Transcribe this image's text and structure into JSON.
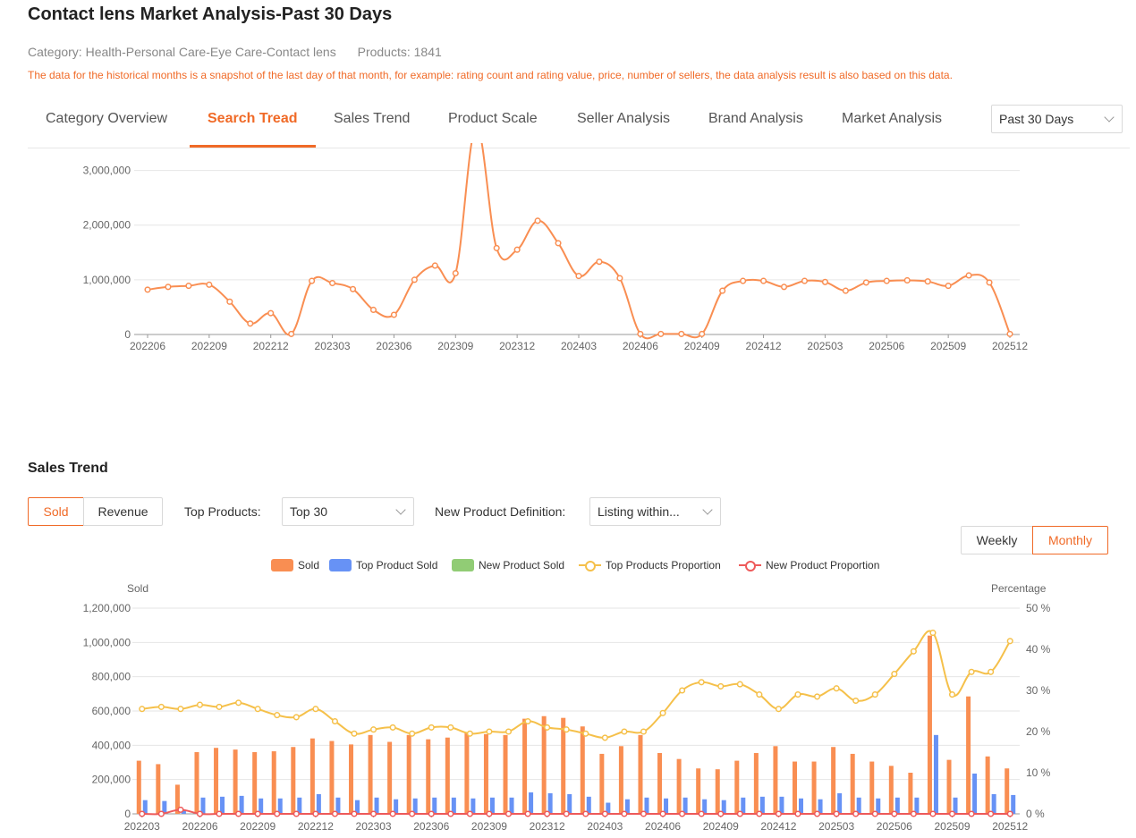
{
  "page": {
    "title": "Contact lens Market Analysis-Past 30 Days",
    "category_label": "Category:",
    "category_value": "Health-Personal Care-Eye Care-Contact lens",
    "products_label": "Products:",
    "products_value": "1841",
    "note": "The data for the historical months is a snapshot of the last day of that month, for example: rating count and rating value, price, number of sellers, the data analysis result is also based on this data."
  },
  "tabs": [
    "Category Overview",
    "Search Tread",
    "Sales Trend",
    "Product Scale",
    "Seller Analysis",
    "Brand Analysis",
    "Market Analysis"
  ],
  "active_tab": "Search Tread",
  "period_select": "Past 30 Days",
  "sales_trend": {
    "title": "Sales Trend",
    "sold_button": "Sold",
    "revenue_button": "Revenue",
    "top_products_label": "Top Products:",
    "top_products_value": "Top 30",
    "new_def_label": "New Product Definition:",
    "new_def_value": "Listing within...",
    "weekly_button": "Weekly",
    "monthly_button": "Monthly",
    "legend": {
      "sold": "Sold",
      "top_sold": "Top Product Sold",
      "new_sold": "New Product Sold",
      "top_prop": "Top Products Proportion",
      "new_prop": "New Product Proportion"
    },
    "left_axis_title": "Sold",
    "right_axis_title": "Percentage"
  },
  "colors": {
    "accent": "#f06a27",
    "sold": "#f98e52",
    "top_sold": "#6792f5",
    "new_sold": "#91cc75",
    "top_prop": "#f5c04a",
    "new_prop": "#ee5a5a"
  },
  "chart_data": [
    {
      "type": "line",
      "title": "Search Tread",
      "x": [
        "202206",
        "202207",
        "202208",
        "202209",
        "202210",
        "202211",
        "202212",
        "202301",
        "202302",
        "202303",
        "202304",
        "202305",
        "202306",
        "202307",
        "202308",
        "202309",
        "202310",
        "202311",
        "202312",
        "202401",
        "202402",
        "202403",
        "202404",
        "202405",
        "202406",
        "202407",
        "202408",
        "202409",
        "202410",
        "202411",
        "202412",
        "202501",
        "202502",
        "202503",
        "202504",
        "202505",
        "202506",
        "202507",
        "202508",
        "202509",
        "202510",
        "202511",
        "202512"
      ],
      "xticks": [
        "202206",
        "202209",
        "202212",
        "202303",
        "202306",
        "202309",
        "202312",
        "202403",
        "202406",
        "202409",
        "202412",
        "202503",
        "202506",
        "202509",
        "202512"
      ],
      "values": [
        820000,
        870000,
        890000,
        910000,
        600000,
        200000,
        390000,
        10000,
        980000,
        940000,
        830000,
        450000,
        360000,
        1000000,
        1260000,
        1120000,
        3800000,
        1580000,
        1550000,
        2080000,
        1670000,
        1070000,
        1330000,
        1030000,
        10000,
        10000,
        10000,
        10000,
        800000,
        980000,
        980000,
        870000,
        980000,
        960000,
        800000,
        950000,
        980000,
        990000,
        970000,
        890000,
        1080000,
        950000,
        10000
      ],
      "yticks": [
        0,
        1000000,
        2000000,
        3000000
      ],
      "ylim": [
        0,
        3500000
      ]
    },
    {
      "type": "bar",
      "title": "Sales Trend",
      "categories": [
        "202203",
        "202204",
        "202205",
        "202206",
        "202207",
        "202208",
        "202209",
        "202210",
        "202211",
        "202212",
        "202301",
        "202302",
        "202303",
        "202304",
        "202305",
        "202306",
        "202307",
        "202308",
        "202309",
        "202310",
        "202311",
        "202312",
        "202401",
        "202402",
        "202403",
        "202404",
        "202405",
        "202406",
        "202407",
        "202408",
        "202409",
        "202410",
        "202411",
        "202412",
        "202501",
        "202502",
        "202503",
        "202504",
        "202505",
        "202506",
        "202507",
        "202508",
        "202509",
        "202510",
        "202511",
        "202512"
      ],
      "xticks": [
        "202203",
        "202206",
        "202209",
        "202212",
        "202303",
        "202306",
        "202309",
        "202312",
        "202403",
        "202406",
        "202409",
        "202412",
        "202503",
        "202506",
        "202509",
        "202512"
      ],
      "series": [
        {
          "name": "Sold",
          "axis": "left",
          "values": [
            310000,
            290000,
            170000,
            360000,
            385000,
            375000,
            360000,
            365000,
            390000,
            440000,
            425000,
            405000,
            460000,
            420000,
            460000,
            435000,
            445000,
            470000,
            465000,
            460000,
            555000,
            570000,
            560000,
            510000,
            350000,
            395000,
            460000,
            355000,
            320000,
            265000,
            260000,
            310000,
            355000,
            395000,
            305000,
            305000,
            390000,
            350000,
            305000,
            280000,
            240000,
            1040000,
            315000,
            685000,
            335000,
            265000
          ]
        },
        {
          "name": "Top Product Sold",
          "axis": "left",
          "values": [
            80000,
            75000,
            20000,
            95000,
            100000,
            105000,
            90000,
            90000,
            95000,
            115000,
            95000,
            80000,
            95000,
            85000,
            90000,
            95000,
            95000,
            90000,
            95000,
            95000,
            125000,
            120000,
            115000,
            100000,
            65000,
            85000,
            95000,
            90000,
            95000,
            85000,
            80000,
            95000,
            100000,
            100000,
            90000,
            85000,
            120000,
            95000,
            90000,
            95000,
            95000,
            460000,
            95000,
            235000,
            115000,
            110000
          ]
        },
        {
          "name": "New Product Sold",
          "axis": "left",
          "values": [
            0,
            0,
            0,
            0,
            0,
            0,
            0,
            0,
            0,
            0,
            0,
            0,
            0,
            0,
            0,
            0,
            0,
            0,
            0,
            0,
            0,
            0,
            0,
            0,
            0,
            0,
            0,
            0,
            0,
            0,
            0,
            0,
            0,
            0,
            0,
            0,
            0,
            0,
            0,
            0,
            0,
            0,
            0,
            0,
            0,
            0
          ]
        },
        {
          "name": "Top Products Proportion",
          "type": "line",
          "axis": "right",
          "values": [
            25.5,
            26,
            25.5,
            26.5,
            26,
            27,
            25.5,
            24,
            23.5,
            25.5,
            22.5,
            19.5,
            20.5,
            21,
            19.5,
            21,
            21,
            19.5,
            20,
            20,
            22.5,
            21,
            20.5,
            19.5,
            18.5,
            20,
            20,
            24.5,
            30,
            32,
            31,
            31.5,
            29,
            25.5,
            29,
            28.5,
            30.5,
            27.5,
            29,
            34,
            39.5,
            44,
            29,
            34.5,
            34.5,
            42
          ]
        },
        {
          "name": "New Product Proportion",
          "type": "line",
          "axis": "right",
          "values": [
            0,
            0,
            1,
            0,
            0,
            0,
            0,
            0,
            0,
            0,
            0,
            0,
            0,
            0,
            0,
            0,
            0,
            0,
            0,
            0,
            0,
            0,
            0,
            0,
            0,
            0,
            0,
            0,
            0,
            0,
            0,
            0,
            0,
            0,
            0,
            0,
            0,
            0,
            0,
            0,
            0,
            0,
            0,
            0,
            0,
            0
          ]
        }
      ],
      "xlabel": "",
      "ylabel": "Sold",
      "ylabel_right": "Percentage",
      "yticks": [
        0,
        200000,
        400000,
        600000,
        800000,
        1000000,
        1200000
      ],
      "ylim": [
        0,
        1200000
      ],
      "yticks_right": [
        0,
        10,
        20,
        30,
        40,
        50
      ],
      "ylim_right": [
        0,
        50
      ],
      "legend_position": "top-center"
    }
  ]
}
